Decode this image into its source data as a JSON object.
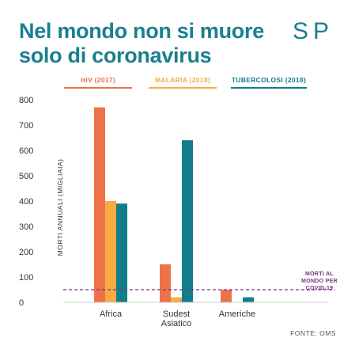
{
  "header": {
    "title_line1": "Nel mondo non si muore",
    "title_line2": "solo di coronavirus"
  },
  "logo": {
    "text": "ISPI",
    "color": "#1a7f8e"
  },
  "colors": {
    "title": "#1a7f8e",
    "hiv": "#ef7149",
    "malaria": "#f6ac43",
    "tuberculosis": "#137d89",
    "covid_line": "#7b2f83"
  },
  "chart_data": {
    "type": "bar",
    "categories": [
      "Africa",
      "Sudest Asiatico",
      "Americhe"
    ],
    "category_labels": [
      [
        "Africa"
      ],
      [
        "Sudest",
        "Asiatico"
      ],
      [
        "Americhe"
      ]
    ],
    "series": [
      {
        "name": "HIV (2017)",
        "values": [
          770,
          150,
          50
        ]
      },
      {
        "name": "MALARIA (2018)",
        "values": [
          400,
          20,
          1
        ]
      },
      {
        "name": "TUBERCOLOSI (2018)",
        "values": [
          390,
          640,
          20
        ]
      }
    ],
    "ylabel": "MORTI ANNUALI (MIGLIAIA)",
    "ylim": [
      0,
      800
    ],
    "yticks": [
      0,
      100,
      200,
      300,
      400,
      500,
      600,
      700,
      800
    ],
    "grid": false,
    "legend_position": "top",
    "reference_line": {
      "value": 50,
      "label_lines": [
        "MORTI AL",
        "MONDO PER",
        "COVID-19"
      ]
    }
  },
  "footer": {
    "source": "FONTE: OMS"
  }
}
